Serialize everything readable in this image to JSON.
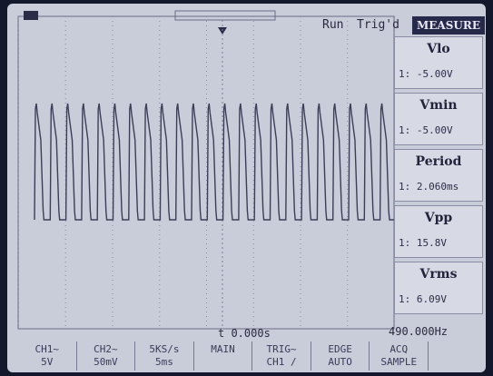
{
  "header": {
    "status": "Run",
    "trigger": "Trig'd",
    "menu_title": "MEASURE"
  },
  "measurements": [
    {
      "label": "Vlo",
      "value": "1: -5.00V"
    },
    {
      "label": "Vmin",
      "value": "1: -5.00V"
    },
    {
      "label": "Period",
      "value": "1: 2.060ms"
    },
    {
      "label": "Vpp",
      "value": "1: 15.8V"
    },
    {
      "label": "Vrms",
      "value": "1: 6.09V"
    }
  ],
  "footer": {
    "time": "t 0.000s",
    "frequency": "490.000Hz"
  },
  "bottom_menu": [
    {
      "top": "CH1~",
      "bottom": "5V"
    },
    {
      "top": "CH2~",
      "bottom": "50mV"
    },
    {
      "top": "5KS/s",
      "bottom": "5ms"
    },
    {
      "top": "MAIN",
      "bottom": ""
    },
    {
      "top": "TRIG~",
      "bottom": "CH1 /"
    },
    {
      "top": "EDGE",
      "bottom": "AUTO"
    },
    {
      "top": "ACQ",
      "bottom": "SAMPLE"
    }
  ]
}
